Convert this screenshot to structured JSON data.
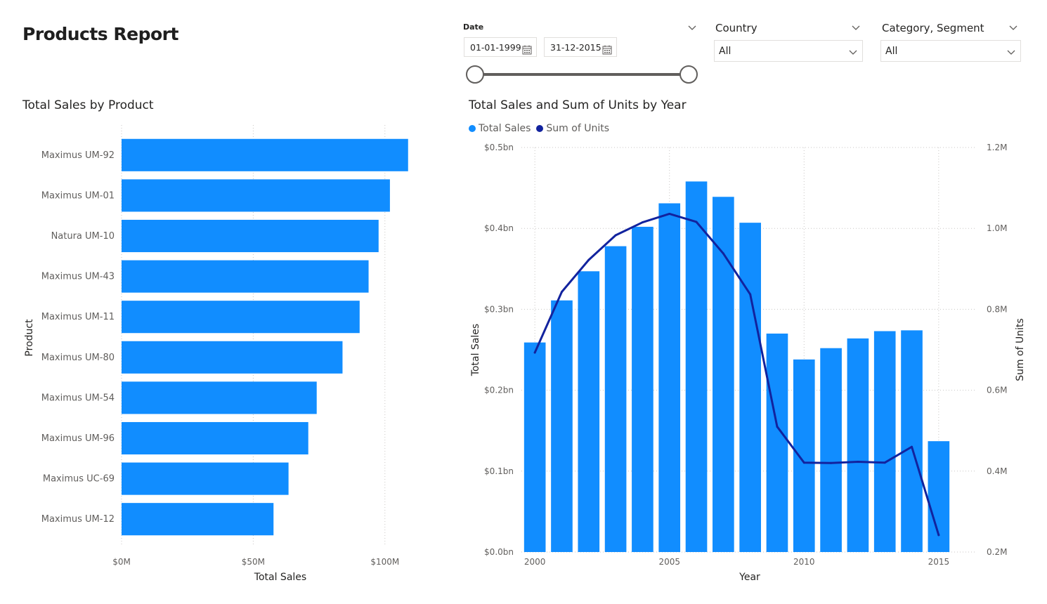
{
  "report": {
    "title": "Products Report"
  },
  "date_slicer": {
    "label": "Date",
    "start": "01-01-1999",
    "end": "31-12-2015",
    "range_start_fraction": 0.0,
    "range_end_fraction": 1.0
  },
  "country_slicer": {
    "label": "Country",
    "selected": "All"
  },
  "category_slicer": {
    "label": "Category, Segment",
    "selected": "All"
  },
  "colors": {
    "bar": "#118dff",
    "line": "#12239e",
    "grid": "#c8c6c4",
    "text": "#605e5c"
  },
  "icons": [
    "calendar-icon",
    "chevron-down-icon"
  ],
  "chart_data": [
    {
      "type": "bar",
      "orientation": "horizontal",
      "title": "Total Sales by Product",
      "xlabel": "Total Sales",
      "ylabel": "Product",
      "xlim": [
        0,
        115
      ],
      "x_unit": "M",
      "x_ticks": [
        0,
        50,
        100
      ],
      "x_tick_labels": [
        "$0M",
        "$50M",
        "$100M"
      ],
      "grid": true,
      "categories": [
        "Maximus UM-92",
        "Maximus UM-01",
        "Natura UM-10",
        "Maximus UM-43",
        "Maximus UM-11",
        "Maximus UM-80",
        "Maximus UM-54",
        "Maximus UM-96",
        "Maximus UC-69",
        "Maximus UM-12"
      ],
      "values": [
        108.8,
        101.9,
        97.6,
        93.8,
        90.4,
        83.9,
        74.1,
        70.9,
        63.4,
        57.7
      ]
    },
    {
      "type": "bar+line",
      "title": "Total Sales and Sum of Units by Year",
      "xlabel": "Year",
      "ylabel": "Total Sales",
      "y2label": "Sum of Units",
      "legend": "top-left",
      "grid": true,
      "x": [
        2000,
        2001,
        2002,
        2003,
        2004,
        2005,
        2006,
        2007,
        2008,
        2009,
        2010,
        2011,
        2012,
        2013,
        2014,
        2015
      ],
      "x_tick_values": [
        2000,
        2005,
        2010,
        2015
      ],
      "x_tick_labels": [
        "2000",
        "2005",
        "2010",
        "2015"
      ],
      "ylim": [
        0,
        0.5
      ],
      "y_ticks": [
        0,
        0.1,
        0.2,
        0.3,
        0.4,
        0.5
      ],
      "y_tick_labels": [
        "$0.0bn",
        "$0.1bn",
        "$0.2bn",
        "$0.3bn",
        "$0.4bn",
        "$0.5bn"
      ],
      "y2lim": [
        0.2,
        1.2
      ],
      "y2_ticks": [
        0.2,
        0.4,
        0.6,
        0.8,
        1.0,
        1.2
      ],
      "y2_tick_labels": [
        "0.2M",
        "0.4M",
        "0.6M",
        "0.8M",
        "1.0M",
        "1.2M"
      ],
      "series": [
        {
          "name": "Total Sales",
          "type": "bar",
          "axis": "left",
          "values": [
            0.259,
            0.311,
            0.347,
            0.378,
            0.402,
            0.431,
            0.458,
            0.439,
            0.407,
            0.27,
            0.238,
            0.252,
            0.264,
            0.273,
            0.274,
            0.137
          ]
        },
        {
          "name": "Sum of Units",
          "type": "line",
          "axis": "right",
          "values": [
            0.693,
            0.843,
            0.922,
            0.983,
            1.015,
            1.036,
            1.016,
            0.938,
            0.837,
            0.51,
            0.421,
            0.42,
            0.423,
            0.421,
            0.46,
            0.242
          ]
        }
      ]
    }
  ]
}
